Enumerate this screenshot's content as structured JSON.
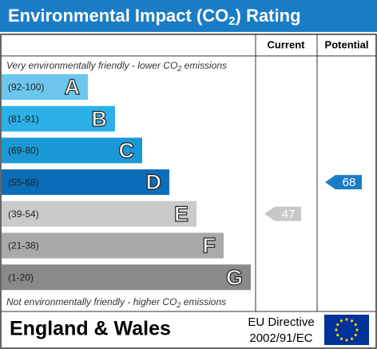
{
  "header": {
    "title": {
      "text": "Environmental Impact (CO",
      "sub": "2",
      "tail": ") Rating"
    }
  },
  "columns": {
    "current": "Current",
    "potential": "Potential"
  },
  "top_note": {
    "text": "Very environmentally friendly - lower CO",
    "sub": "2",
    "tail": " emissions"
  },
  "bottom_note": {
    "text": "Not environmentally friendly - higher CO",
    "sub": "2",
    "tail": " emissions"
  },
  "bands": [
    {
      "range": "(92-100)",
      "letter": "A",
      "color": "#6cc6ee"
    },
    {
      "range": "(81-91)",
      "letter": "B",
      "color": "#2cb0e8"
    },
    {
      "range": "(69-80)",
      "letter": "C",
      "color": "#1a98d6"
    },
    {
      "range": "(55-68)",
      "letter": "D",
      "color": "#0b6db8"
    },
    {
      "range": "(39-54)",
      "letter": "E",
      "color": "#cacaca"
    },
    {
      "range": "(21-38)",
      "letter": "F",
      "color": "#a9a9a9"
    },
    {
      "range": "(1-20)",
      "letter": "G",
      "color": "#898989"
    }
  ],
  "current": {
    "value": 47,
    "color": "#c8c8c8"
  },
  "potential": {
    "value": 68,
    "color": "#1b7cc6"
  },
  "footer": {
    "region": "England & Wales",
    "directive": "EU Directive",
    "code": "2002/91/EC"
  }
}
